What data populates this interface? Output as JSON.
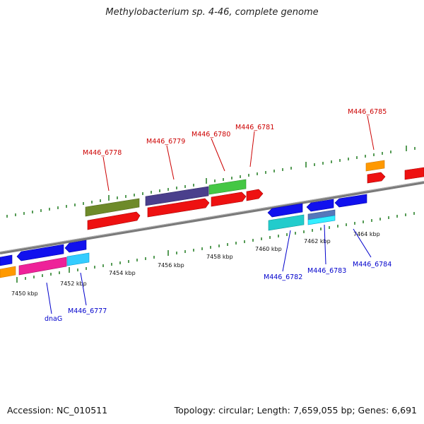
{
  "title": "Methylobacterium sp. 4-46, complete genome",
  "footer": {
    "accession": "Accession: NC_010511",
    "summary": "Topology: circular; Length: 7,659,055 bp; Genes: 6,691"
  },
  "colors": {
    "label_forward": "#cc0000",
    "label_reverse": "#0000cc",
    "backbone": "#888888",
    "tick": "#1f7a1f"
  },
  "ticks": [
    {
      "label": "7450 kbp"
    },
    {
      "label": "7452 kbp"
    },
    {
      "label": "7454 kbp"
    },
    {
      "label": "7456 kbp"
    },
    {
      "label": "7458 kbp"
    },
    {
      "label": "7460 kbp"
    },
    {
      "label": "7462 kbp"
    },
    {
      "label": "7464 kbp"
    }
  ],
  "gene_labels": {
    "forward": [
      "M446_6778",
      "M446_6779",
      "M446_6780",
      "M446_6781",
      "M446_6785"
    ],
    "reverse": [
      "dnaG",
      "M446_6777",
      "M446_6782",
      "M446_6783",
      "M446_6784"
    ]
  }
}
